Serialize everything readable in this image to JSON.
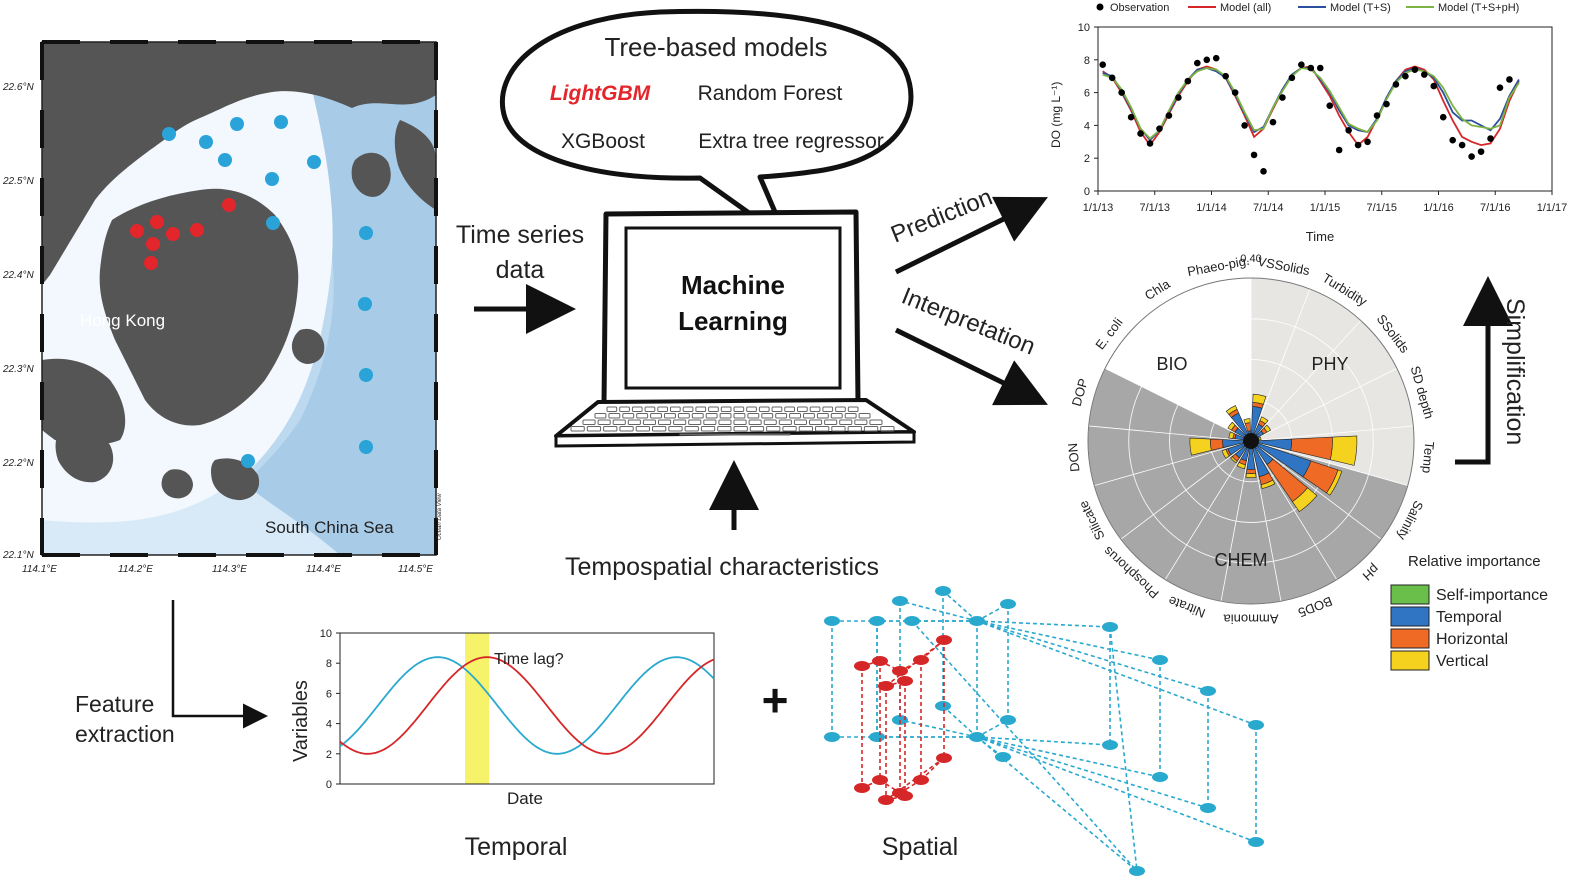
{
  "map": {
    "lat_labels": [
      "22.6°N",
      "22.5°N",
      "22.4°N",
      "22.3°N",
      "22.2°N",
      "22.1°N"
    ],
    "lon_labels": [
      "114.1°E",
      "114.2°E",
      "114.3°E",
      "114.4°E",
      "114.5°E"
    ],
    "place_hong_kong": "Hong Kong",
    "place_south_china_sea": "South China Sea",
    "credit": "Ocean Data View",
    "station_colors": {
      "inner": "#e3262b",
      "outer": "#2aa3d8"
    }
  },
  "models": {
    "title": "Tree-based models",
    "lightgbm": "LightGBM",
    "random_forest": "Random Forest",
    "xgboost": "XGBoost",
    "extra_tree": "Extra tree regressor"
  },
  "laptop": {
    "line1": "Machine",
    "line2": "Learning"
  },
  "flow": {
    "time_series_1": "Time series",
    "time_series_2": "data",
    "prediction": "Prediction",
    "interpretation": "Interpretation",
    "simplification": "Simplification",
    "tempospatial": "Tempospatial characteristics",
    "feature_1": "Feature",
    "feature_2": "extraction",
    "plus": "+",
    "temporal_caption": "Temporal",
    "spatial_caption": "Spatial"
  },
  "colors": {
    "obs": "#000000",
    "all": "#d62728",
    "ts": "#2c4f9e",
    "tsph": "#7cb342",
    "self": "#6abf4b",
    "temporal": "#2f75c4",
    "horizontal": "#ef6a24",
    "vertical": "#f4d21e",
    "teal": "#2aa9cf",
    "red": "#d62728",
    "lag": "#f6f36a"
  },
  "chart_data": [
    {
      "type": "line",
      "title": "",
      "xlabel": "Time",
      "ylabel": "DO (mg L⁻¹)",
      "ylim": [
        0,
        10
      ],
      "yticks": [
        0,
        2,
        4,
        6,
        8,
        10
      ],
      "xticks": [
        "1/1/13",
        "7/1/13",
        "1/1/14",
        "7/1/14",
        "1/1/15",
        "7/1/15",
        "1/1/16",
        "7/1/16",
        "1/1/17"
      ],
      "legend": [
        "Observation",
        "Model (all)",
        "Model (T+S)",
        "Model (T+S+pH)"
      ],
      "legend_position": "top",
      "x_months": [
        0.5,
        1.5,
        2.5,
        3.5,
        4.5,
        5.5,
        6.5,
        7.5,
        8.5,
        9.5,
        10.5,
        11.5,
        12.5,
        13.5,
        14.5,
        15.5,
        16.5,
        17.5,
        18.5,
        19.5,
        20.5,
        21.5,
        22.5,
        23.5,
        24.5,
        25.5,
        26.5,
        27.5,
        28.5,
        29.5,
        30.5,
        31.5,
        32.5,
        33.5,
        34.5,
        35.5,
        36.5,
        37.5,
        38.5,
        39.5,
        40.5,
        41.5,
        42.5,
        43.5,
        44.5,
        45.5,
        46.5,
        47.5
      ],
      "series": [
        {
          "name": "Model (all)",
          "values": [
            7.3,
            6.9,
            6.0,
            4.9,
            3.6,
            2.8,
            3.6,
            4.7,
            5.8,
            6.7,
            7.4,
            7.6,
            7.4,
            6.9,
            5.8,
            4.6,
            3.3,
            3.8,
            5.0,
            6.1,
            7.1,
            7.5,
            7.6,
            6.7,
            5.8,
            4.6,
            3.6,
            2.8,
            3.3,
            4.4,
            5.6,
            6.7,
            7.4,
            7.6,
            7.4,
            6.8,
            5.5,
            4.3,
            3.3,
            3.0,
            2.8,
            2.9,
            3.8,
            5.5,
            6.7,
            null,
            null,
            null
          ]
        },
        {
          "name": "Model (T+S)",
          "values": [
            7.2,
            7.0,
            6.1,
            5.0,
            3.8,
            3.1,
            3.7,
            4.8,
            5.9,
            6.8,
            7.4,
            7.5,
            7.3,
            6.9,
            5.9,
            4.7,
            3.6,
            3.9,
            5.1,
            6.2,
            7.1,
            7.5,
            7.5,
            6.8,
            6.0,
            4.9,
            4.0,
            3.7,
            3.6,
            4.4,
            5.7,
            6.7,
            7.3,
            7.5,
            7.3,
            6.9,
            6.0,
            4.8,
            4.3,
            4.3,
            4.0,
            3.7,
            4.4,
            5.8,
            6.8,
            null,
            null,
            null
          ]
        },
        {
          "name": "Model (T+S+pH)",
          "values": [
            7.1,
            6.9,
            6.2,
            5.1,
            3.8,
            3.2,
            3.7,
            4.9,
            6.0,
            6.8,
            7.3,
            7.5,
            7.4,
            7.0,
            6.0,
            4.8,
            3.7,
            3.8,
            5.1,
            6.1,
            7.0,
            7.5,
            7.4,
            6.9,
            6.1,
            5.1,
            4.1,
            3.8,
            3.6,
            4.3,
            5.6,
            6.6,
            7.2,
            7.4,
            7.3,
            7.0,
            6.3,
            5.2,
            4.4,
            4.0,
            3.9,
            3.8,
            4.0,
            5.7,
            6.6,
            null,
            null,
            null
          ]
        }
      ],
      "observations": [
        {
          "x": 0.5,
          "y": 7.7
        },
        {
          "x": 1.5,
          "y": 6.9
        },
        {
          "x": 2.5,
          "y": 6.0
        },
        {
          "x": 3.5,
          "y": 4.5
        },
        {
          "x": 4.5,
          "y": 3.5
        },
        {
          "x": 5.5,
          "y": 2.9
        },
        {
          "x": 6.5,
          "y": 3.8
        },
        {
          "x": 7.5,
          "y": 4.6
        },
        {
          "x": 8.5,
          "y": 5.7
        },
        {
          "x": 9.5,
          "y": 6.7
        },
        {
          "x": 10.5,
          "y": 7.8
        },
        {
          "x": 11.5,
          "y": 8.0
        },
        {
          "x": 12.5,
          "y": 8.1
        },
        {
          "x": 13.5,
          "y": 7.0
        },
        {
          "x": 14.5,
          "y": 6.0
        },
        {
          "x": 15.5,
          "y": 4.0
        },
        {
          "x": 16.5,
          "y": 2.2
        },
        {
          "x": 17.5,
          "y": 1.2
        },
        {
          "x": 18.5,
          "y": 4.2
        },
        {
          "x": 19.5,
          "y": 5.7
        },
        {
          "x": 20.5,
          "y": 6.9
        },
        {
          "x": 21.5,
          "y": 7.7
        },
        {
          "x": 22.5,
          "y": 7.5
        },
        {
          "x": 23.5,
          "y": 7.5
        },
        {
          "x": 24.5,
          "y": 5.2
        },
        {
          "x": 25.5,
          "y": 2.5
        },
        {
          "x": 26.5,
          "y": 3.7
        },
        {
          "x": 27.5,
          "y": 2.8
        },
        {
          "x": 28.5,
          "y": 3.0
        },
        {
          "x": 29.5,
          "y": 4.6
        },
        {
          "x": 30.5,
          "y": 5.3
        },
        {
          "x": 31.5,
          "y": 6.5
        },
        {
          "x": 32.5,
          "y": 7.0
        },
        {
          "x": 33.5,
          "y": 7.4
        },
        {
          "x": 34.5,
          "y": 7.1
        },
        {
          "x": 35.5,
          "y": 6.4
        },
        {
          "x": 36.5,
          "y": 4.5
        },
        {
          "x": 37.5,
          "y": 3.1
        },
        {
          "x": 38.5,
          "y": 2.8
        },
        {
          "x": 39.5,
          "y": 2.1
        },
        {
          "x": 40.5,
          "y": 2.4
        },
        {
          "x": 41.5,
          "y": 3.2
        },
        {
          "x": 42.5,
          "y": 6.3
        },
        {
          "x": 43.5,
          "y": 6.8
        }
      ]
    },
    {
      "type": "polar-bar",
      "title": "",
      "rlim": [
        0,
        0.4
      ],
      "rtick_label": "0.40",
      "groups": [
        "BIO",
        "PHY",
        "CHEM"
      ],
      "legend_title": "Relative importance",
      "legend": [
        "Self-importance",
        "Temporal",
        "Horizontal",
        "Vertical"
      ],
      "categories": [
        "VSSolids",
        "Turbidity",
        "SSolids",
        "SD depth",
        "Temp",
        "Salinity",
        "pH",
        "BOD5",
        "Ammonia",
        "Nitrate",
        "Phosphorus",
        "Silicate",
        "DON",
        "DOP",
        "E. coli",
        "Chla",
        "Phaeo-pig."
      ],
      "category_groups": [
        "PHY",
        "PHY",
        "PHY",
        "PHY",
        "PHY",
        "CHEM",
        "CHEM",
        "CHEM",
        "CHEM",
        "CHEM",
        "CHEM",
        "CHEM",
        "CHEM",
        "CHEM",
        "BIO",
        "BIO",
        "BIO"
      ],
      "series": [
        {
          "name": "Self-importance",
          "values": [
            0.005,
            0.005,
            0.005,
            0.005,
            0.01,
            0.015,
            0.01,
            0.01,
            0.01,
            0.01,
            0.01,
            0.01,
            0.01,
            0.01,
            0.005,
            0.005,
            0.005
          ]
        },
        {
          "name": "Temporal",
          "values": [
            0.08,
            0.04,
            0.03,
            0.01,
            0.09,
            0.14,
            0.06,
            0.08,
            0.06,
            0.04,
            0.04,
            0.05,
            0.06,
            0.03,
            0.04,
            0.07,
            0.02
          ]
        },
        {
          "name": "Horizontal",
          "values": [
            0.01,
            0.01,
            0.01,
            0.005,
            0.1,
            0.07,
            0.11,
            0.02,
            0.01,
            0.01,
            0.01,
            0.005,
            0.03,
            0.005,
            0.01,
            0.01,
            0.02
          ]
        },
        {
          "name": "Vertical",
          "values": [
            0.02,
            0.01,
            0.01,
            0.005,
            0.06,
            0.01,
            0.03,
            0.01,
            0.01,
            0.01,
            0.005,
            0.01,
            0.05,
            0.01,
            0.01,
            0.01,
            0.01
          ]
        }
      ]
    },
    {
      "type": "line",
      "title": "",
      "xlabel": "Date",
      "ylabel": "Variables",
      "ylim": [
        0,
        10
      ],
      "yticks": [
        0,
        2,
        4,
        6,
        8,
        10
      ],
      "annotation": "Time lag?",
      "series": [
        {
          "name": "",
          "color": "teal"
        },
        {
          "name": "",
          "color": "red"
        }
      ]
    }
  ]
}
